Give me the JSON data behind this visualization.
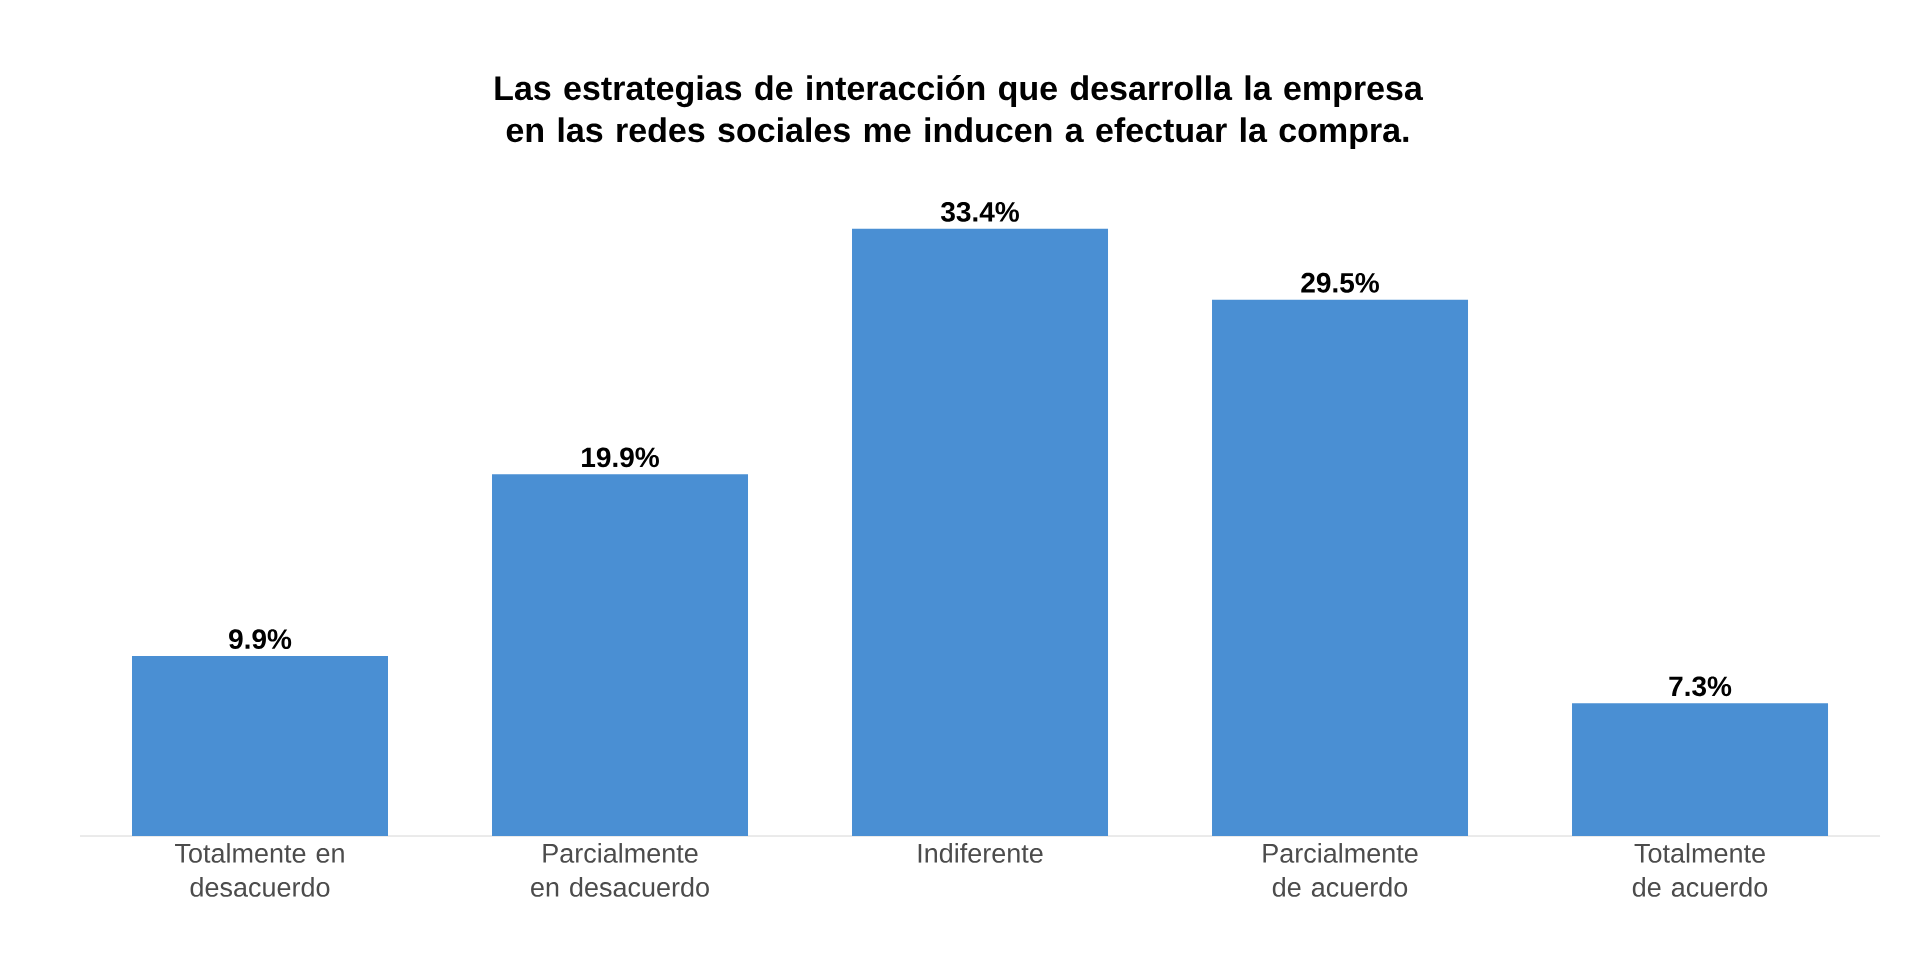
{
  "chart_data": {
    "type": "bar",
    "title": "Las estrategias de interacción que desarrolla la empresa en las redes sociales me inducen a efectuar la compra.",
    "categories": [
      "Totalmente en desacuerdo",
      "Parcialmente en desacuerdo",
      "Indiferente",
      "Parcialmente de acuerdo",
      "Totalmente de acuerdo"
    ],
    "values": [
      9.9,
      19.9,
      33.4,
      29.5,
      7.3
    ],
    "value_labels": [
      "9.9%",
      "19.9%",
      "33.4%",
      "29.5%",
      "7.3%"
    ],
    "color": "#4a8fd3"
  }
}
